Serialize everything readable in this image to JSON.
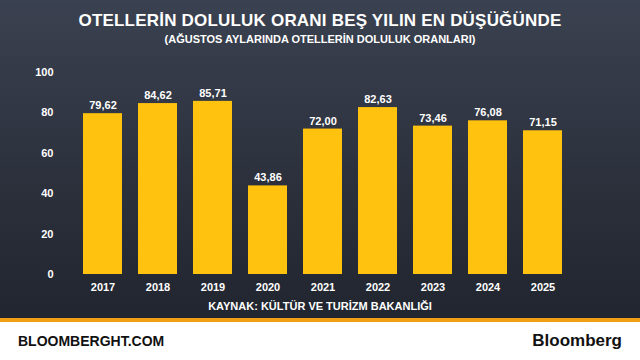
{
  "chart_data": {
    "type": "bar",
    "title": "OTELLERİN DOLULUK ORANI BEŞ YILIN EN DÜŞÜĞÜNDE",
    "subtitle": "(AĞUSTOS AYLARINDA OTELLERİN DOLULUK ORANLARI)",
    "source": "KAYNAK: KÜLTÜR VE TURİZM BAKANLIĞI",
    "footer_left": "BLOOMBERGHT.COM",
    "footer_right": "Bloomberg",
    "categories": [
      "2017",
      "2018",
      "2019",
      "2020",
      "2021",
      "2022",
      "2023",
      "2024",
      "2025"
    ],
    "values": [
      79.62,
      84.62,
      85.71,
      43.86,
      72.0,
      82.63,
      73.46,
      76.08,
      71.15
    ],
    "value_labels": [
      "79,62",
      "84,62",
      "85,71",
      "43,86",
      "72,00",
      "82,63",
      "73,46",
      "76,08",
      "71,15"
    ],
    "color": "#ffc20e",
    "ylim": [
      0,
      100
    ],
    "yticks": [
      0,
      20,
      40,
      60,
      80,
      100
    ],
    "grid": false,
    "data_labels": true
  }
}
